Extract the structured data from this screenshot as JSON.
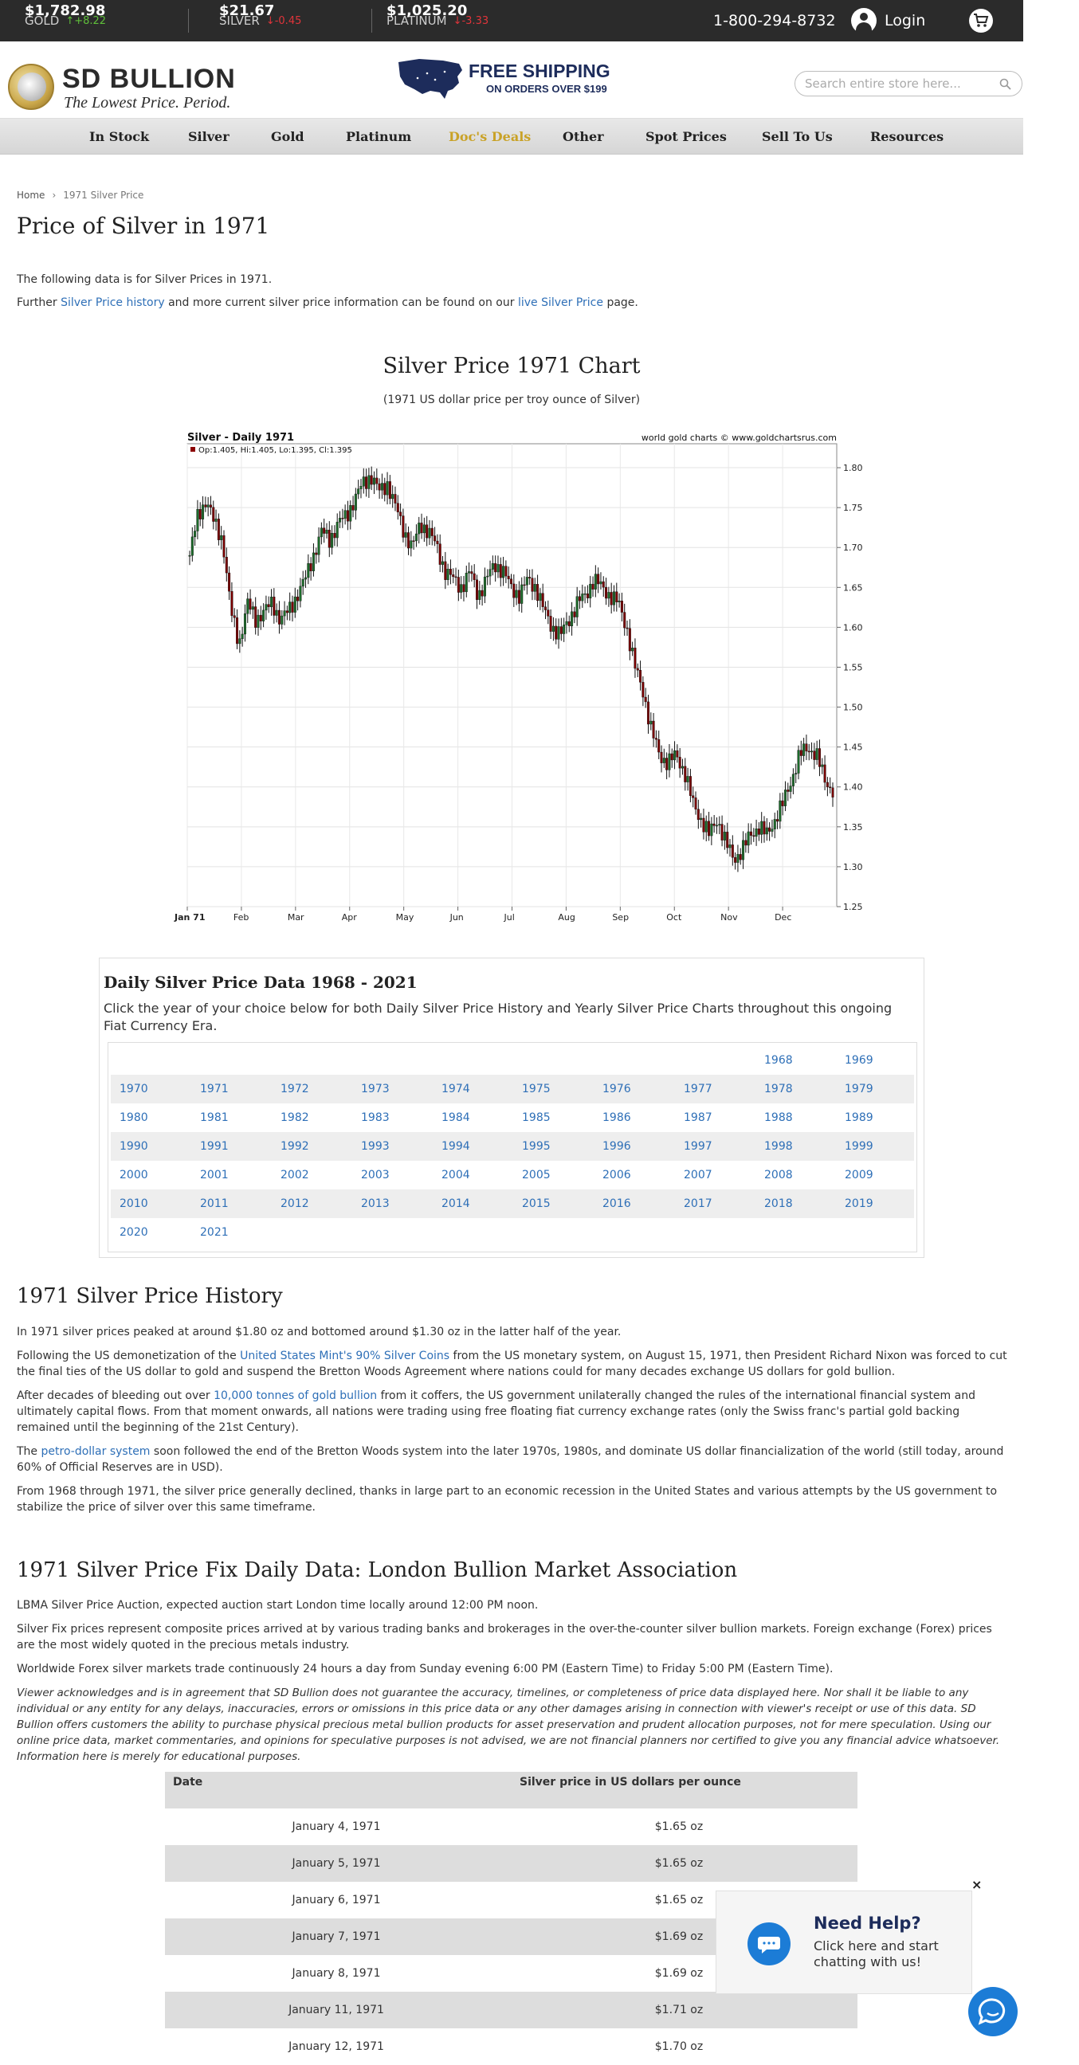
{
  "ticker": {
    "gold": {
      "name": "GOLD",
      "price": "$1,782.98",
      "change": "↑+8.22"
    },
    "silver": {
      "name": "SILVER",
      "price": "$21.67",
      "change": "↓-0.45"
    },
    "platinum": {
      "name": "PLATINUM",
      "price": "$1,025.20",
      "change": "↓-3.33"
    },
    "phone": "1-800-294-8732",
    "login": "Login"
  },
  "header": {
    "logo_name": "SD BULLION",
    "logo_tagline": "The Lowest Price. Period.",
    "shipping_title": "FREE SHIPPING",
    "shipping_sub": "ON ORDERS OVER $199",
    "search_placeholder": "Search entire store here..."
  },
  "nav": [
    "In Stock",
    "Silver",
    "Gold",
    "Platinum",
    "Doc's Deals",
    "Other",
    "Spot Prices",
    "Sell To Us",
    "Resources"
  ],
  "breadcrumb": {
    "home": "Home",
    "current": "1971 Silver Price"
  },
  "page_title": "Price of Silver in 1971",
  "intro": {
    "line1": "The following data is for Silver Prices in 1971.",
    "line2_pre": "Further ",
    "line2_link1": "Silver Price history",
    "line2_mid": " and more current silver price information can be found on our ",
    "line2_link2": "live Silver Price",
    "line2_post": " page."
  },
  "chart_section": {
    "title": "Silver Price 1971 Chart",
    "subtitle": "(1971 US dollar price per troy ounce of Silver)"
  },
  "chart_data": {
    "type": "candlestick",
    "title": "Silver - Daily 1971",
    "watermark": "world gold charts © www.goldchartsrus.com",
    "legend": "Op:1.405, Hi:1.405, Lo:1.395, Cl:1.395",
    "ylim": [
      1.25,
      1.8
    ],
    "yticks": [
      "1.80",
      "1.75",
      "1.70",
      "1.65",
      "1.60",
      "1.55",
      "1.50",
      "1.45",
      "1.40",
      "1.35",
      "1.30",
      "1.25"
    ],
    "xticks": [
      "Jan 71",
      "Feb",
      "Mar",
      "Apr",
      "May",
      "Jun",
      "Jul",
      "Aug",
      "Sep",
      "Oct",
      "Nov",
      "Dec"
    ],
    "close_approx": [
      1.69,
      1.74,
      1.76,
      1.73,
      1.71,
      1.62,
      1.58,
      1.63,
      1.61,
      1.62,
      1.63,
      1.61,
      1.62,
      1.64,
      1.66,
      1.69,
      1.72,
      1.71,
      1.73,
      1.74,
      1.76,
      1.78,
      1.79,
      1.77,
      1.78,
      1.75,
      1.72,
      1.7,
      1.73,
      1.72,
      1.7,
      1.67,
      1.66,
      1.65,
      1.67,
      1.64,
      1.66,
      1.68,
      1.67,
      1.65,
      1.64,
      1.66,
      1.65,
      1.62,
      1.6,
      1.59,
      1.61,
      1.63,
      1.64,
      1.66,
      1.65,
      1.64,
      1.63,
      1.6,
      1.55,
      1.52,
      1.47,
      1.44,
      1.43,
      1.44,
      1.42,
      1.38,
      1.36,
      1.34,
      1.36,
      1.33,
      1.31,
      1.32,
      1.34,
      1.35,
      1.34,
      1.36,
      1.38,
      1.41,
      1.44,
      1.45,
      1.44,
      1.41,
      1.395
    ]
  },
  "data_box": {
    "title": "Daily Silver Price Data 1968 - 2021",
    "text": "Click the year of your choice below for both Daily Silver Price History and Yearly Silver Price Charts throughout this ongoing Fiat Currency Era.",
    "rows": [
      [
        "",
        "",
        "",
        "",
        "",
        "",
        "",
        "",
        "1968",
        "1969"
      ],
      [
        "1970",
        "1971",
        "1972",
        "1973",
        "1974",
        "1975",
        "1976",
        "1977",
        "1978",
        "1979"
      ],
      [
        "1980",
        "1981",
        "1982",
        "1983",
        "1984",
        "1985",
        "1986",
        "1987",
        "1988",
        "1989"
      ],
      [
        "1990",
        "1991",
        "1992",
        "1993",
        "1994",
        "1995",
        "1996",
        "1997",
        "1998",
        "1999"
      ],
      [
        "2000",
        "2001",
        "2002",
        "2003",
        "2004",
        "2005",
        "2006",
        "2007",
        "2008",
        "2009"
      ],
      [
        "2010",
        "2011",
        "2012",
        "2013",
        "2014",
        "2015",
        "2016",
        "2017",
        "2018",
        "2019"
      ],
      [
        "2020",
        "2021",
        "",
        "",
        "",
        "",
        "",
        "",
        "",
        ""
      ]
    ]
  },
  "history": {
    "title": "1971 Silver Price History",
    "p1": "In 1971 silver prices peaked at around $1.80 oz and bottomed around $1.30 oz in the latter half of the year.",
    "p2_pre": "Following the US demonetization of the ",
    "p2_link": "United States Mint's 90% Silver Coins",
    "p2_post": " from the US monetary system, on August 15, 1971, then President Richard Nixon was forced to cut the final ties of the US dollar to gold and suspend the Bretton Woods Agreement where nations could for many decades exchange US dollars for gold bullion.",
    "p3_pre": "After decades of bleeding out over ",
    "p3_link": "10,000 tonnes of gold bullion",
    "p3_post": " from it coffers, the US government unilaterally changed the rules of the international financial system and ultimately capital flows. From that moment onwards, all nations were trading using free floating fiat currency exchange rates (only the Swiss franc's partial gold backing remained until the beginning of the 21st Century).",
    "p4_pre": "The ",
    "p4_link": "petro-dollar system",
    "p4_post": " soon followed the end of the Bretton Woods system into the later 1970s, 1980s, and dominate US dollar financialization of the world (still today, around 60% of Official Reserves are in USD).",
    "p5": "From 1968 through 1971, the silver price generally declined, thanks in large part to an economic recession in the United States and various attempts by the US government to stabilize the price of silver over this same timeframe."
  },
  "fix": {
    "title": "1971 Silver Price Fix Daily Data: London Bullion Market Association",
    "p1": "LBMA Silver Price Auction, expected auction start London time locally around 12:00 PM noon.",
    "p2": "Silver Fix prices represent composite prices arrived at by various trading banks and brokerages in the over-the-counter silver bullion markets. Foreign exchange (Forex) prices are the most widely quoted in the precious metals industry.",
    "p3": "Worldwide Forex silver markets trade continuously 24 hours a day from Sunday evening 6:00 PM (Eastern Time) to Friday 5:00 PM (Eastern Time).",
    "disclaimer": "Viewer acknowledges and is in agreement that SD Bullion does not guarantee the accuracy, timelines, or completeness of price data displayed here. Nor shall it be liable to any individual or any entity for any delays, inaccuracies, errors or omissions in this price data or any other damages arising in connection with viewer's receipt or use of this data. SD Bullion offers customers the ability to purchase physical precious metal bullion products for asset preservation and prudent allocation purposes, not for mere speculation. Using our online price data, market commentaries, and opinions for speculative purposes is not advised, we are not financial planners nor certified to give you any financial advice whatsoever. Information here is merely for educational purposes.",
    "table": {
      "headers": [
        "Date",
        "Silver price in US dollars per ounce"
      ],
      "rows": [
        [
          "January 4, 1971",
          "$1.65 oz"
        ],
        [
          "January 5, 1971",
          "$1.65 oz"
        ],
        [
          "January 6, 1971",
          "$1.65 oz"
        ],
        [
          "January 7, 1971",
          "$1.69 oz"
        ],
        [
          "January 8, 1971",
          "$1.69 oz"
        ],
        [
          "January 11, 1971",
          "$1.71 oz"
        ],
        [
          "January 12, 1971",
          "$1.70 oz"
        ]
      ]
    }
  },
  "help": {
    "title": "Need Help?",
    "text": "Click here and start chatting with us!",
    "close": "×"
  },
  "colors": {
    "ticker_bg": "#2b2b2b",
    "up": "#5fbf3a",
    "down": "#e0343a",
    "link": "#2e6fb7",
    "deals": "#c9a227",
    "chat": "#1c7cd6"
  }
}
